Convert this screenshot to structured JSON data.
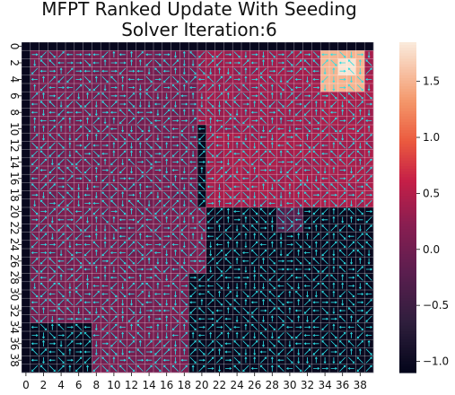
{
  "chart_data": {
    "type": "heatmap",
    "title": "MFPT Ranked Update With Seeding",
    "subtitle": "Solver Iteration:6",
    "grid_size": [
      40,
      40
    ],
    "x_tick_labels": [
      "0",
      "2",
      "4",
      "6",
      "8",
      "10",
      "12",
      "14",
      "16",
      "18",
      "20",
      "22",
      "24",
      "26",
      "28",
      "30",
      "32",
      "34",
      "36",
      "38"
    ],
    "y_tick_labels": [
      "0",
      "2",
      "4",
      "6",
      "8",
      "10",
      "12",
      "14",
      "16",
      "18",
      "20",
      "22",
      "24",
      "26",
      "28",
      "30",
      "32",
      "34",
      "36",
      "38"
    ],
    "colorbar": {
      "colormap": "rocket",
      "range": [
        -1.1,
        1.85
      ],
      "ticks": [
        -1.0,
        -0.5,
        0.0,
        0.5,
        1.0,
        1.5
      ],
      "tick_labels": [
        "−1.0",
        "−0.5",
        "0.0",
        "0.5",
        "1.0",
        "1.5"
      ]
    },
    "regions": [
      {
        "name": "background",
        "rows": [
          0,
          39
        ],
        "cols": [
          0,
          39
        ],
        "value": 0.05
      },
      {
        "name": "upper-right-block",
        "rows": [
          1,
          19
        ],
        "cols": [
          20,
          39
        ],
        "value": 0.4
      },
      {
        "name": "upper-right-top-band",
        "rows": [
          1,
          10
        ],
        "cols": [
          20,
          33
        ],
        "value": 0.35
      },
      {
        "name": "hot-corner",
        "rows": [
          1,
          5
        ],
        "cols": [
          34,
          38
        ],
        "value": 1.5
      },
      {
        "name": "hot-corner-peak",
        "rows": [
          2,
          3
        ],
        "cols": [
          36,
          37
        ],
        "value": 1.8
      },
      {
        "name": "notch-dark",
        "rows": [
          10,
          19
        ],
        "cols": [
          20,
          20
        ],
        "value": -1.05
      },
      {
        "name": "lower-right-dark",
        "rows": [
          20,
          39
        ],
        "cols": [
          21,
          39
        ],
        "value": -1.05
      },
      {
        "name": "lower-right-mid",
        "rows": [
          20,
          22
        ],
        "cols": [
          29,
          31
        ],
        "value": -0.3
      },
      {
        "name": "lower-left-dark",
        "rows": [
          34,
          39
        ],
        "cols": [
          0,
          7
        ],
        "value": -1.05
      },
      {
        "name": "left-column-dark",
        "rows": [
          0,
          39
        ],
        "cols": [
          0,
          0
        ],
        "value": -1.05
      },
      {
        "name": "top-row-dark",
        "rows": [
          0,
          0
        ],
        "cols": [
          0,
          39
        ],
        "value": -1.05
      },
      {
        "name": "mid-column-dark",
        "rows": [
          28,
          39
        ],
        "cols": [
          19,
          20
        ],
        "value": -1.05
      }
    ],
    "grid_lines": true,
    "grid_line_color": "#ffffff",
    "arrow_color": "#2de0e6",
    "arrow_overlay": "directional arrows in every free cell"
  }
}
